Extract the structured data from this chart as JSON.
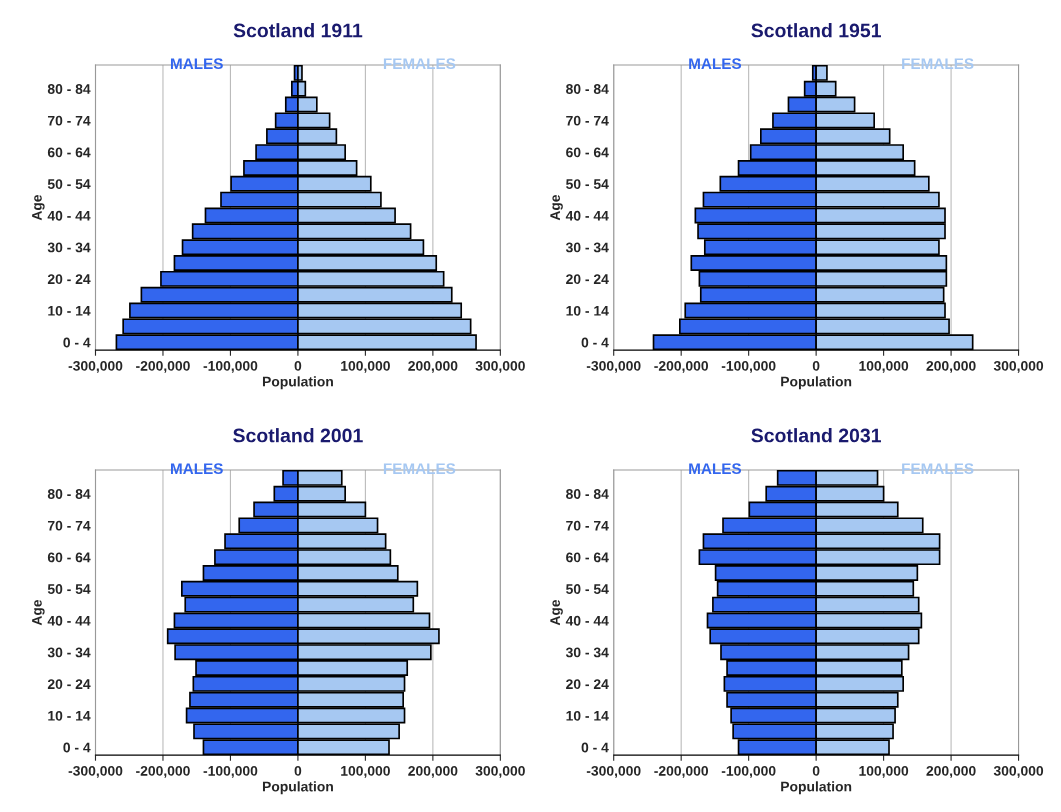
{
  "chart_data": [
    {
      "type": "bar",
      "title": "Scotland 1911",
      "xlabel": "Population",
      "ylabel": "Age",
      "orientation": "horizontal",
      "stacked": true,
      "grid": "x",
      "legend": false,
      "categories": [
        null,
        "80 - 84",
        null,
        "70 - 74",
        null,
        "60 - 64",
        null,
        "50 - 54",
        null,
        "40 - 44",
        null,
        "30 - 34",
        null,
        "20 - 24",
        null,
        "10 - 14",
        null,
        "0 - 4"
      ],
      "series": [
        {
          "name": "MALES",
          "color": "#3366ee",
          "values": [
            -5000,
            -9000,
            -18000,
            -33000,
            -46000,
            -62000,
            -80000,
            -99000,
            -114000,
            -137000,
            -156000,
            -171000,
            -183000,
            -203000,
            -232000,
            -249000,
            -259000,
            -269000
          ]
        },
        {
          "name": "FEMALES",
          "color": "#a6c8f2",
          "values": [
            6000,
            11000,
            28000,
            47000,
            57000,
            70000,
            87000,
            108000,
            123000,
            144000,
            167000,
            186000,
            205000,
            216000,
            228000,
            242000,
            256000,
            264000
          ]
        }
      ],
      "xlim": [
        -300000,
        300000
      ],
      "xticks": [
        {
          "value": -300000,
          "label": "-300,000"
        },
        {
          "value": -200000,
          "label": "-200,000"
        },
        {
          "value": -100000,
          "label": "-100,000"
        },
        0,
        {
          "value": 100000,
          "label": "100,000"
        },
        {
          "value": 200000,
          "label": "200,000"
        },
        {
          "value": 300000,
          "label": "300,000"
        }
      ]
    },
    {
      "type": "bar",
      "title": "Scotland 1951",
      "xlabel": "Population",
      "ylabel": "Age",
      "orientation": "horizontal",
      "stacked": true,
      "grid": "x",
      "legend": false,
      "categories": [
        null,
        "80 - 84",
        null,
        "70 - 74",
        null,
        "60 - 64",
        null,
        "50 - 54",
        null,
        "40 - 44",
        null,
        "30 - 34",
        null,
        "20 - 24",
        null,
        "10 - 14",
        null,
        "0 - 4"
      ],
      "series": [
        {
          "name": "MALES",
          "color": "#3366ee",
          "values": [
            -5000,
            -17000,
            -41000,
            -64000,
            -82000,
            -97000,
            -115000,
            -142000,
            -167000,
            -179000,
            -175000,
            -165000,
            -185000,
            -173000,
            -171000,
            -194000,
            -202000,
            -241000
          ]
        },
        {
          "name": "FEMALES",
          "color": "#a6c8f2",
          "values": [
            16000,
            29000,
            57000,
            86000,
            109000,
            129000,
            146000,
            167000,
            182000,
            191000,
            191000,
            182000,
            193000,
            193000,
            189000,
            191000,
            197000,
            232000
          ]
        }
      ],
      "xlim": [
        -300000,
        300000
      ],
      "xticks": [
        {
          "value": -300000,
          "label": "-300,000"
        },
        {
          "value": -200000,
          "label": "-200,000"
        },
        {
          "value": -100000,
          "label": "-100,000"
        },
        0,
        {
          "value": 100000,
          "label": "100,000"
        },
        {
          "value": 200000,
          "label": "200,000"
        },
        {
          "value": 300000,
          "label": "300,000"
        }
      ]
    },
    {
      "type": "bar",
      "title": "Scotland 2001",
      "xlabel": "Population",
      "ylabel": "Age",
      "orientation": "horizontal",
      "stacked": true,
      "grid": "x",
      "legend": false,
      "categories": [
        null,
        "80 - 84",
        null,
        "70 - 74",
        null,
        "60 - 64",
        null,
        "50 - 54",
        null,
        "40 - 44",
        null,
        "30 - 34",
        null,
        "20 - 24",
        null,
        "10 - 14",
        null,
        "0 - 4"
      ],
      "series": [
        {
          "name": "MALES",
          "color": "#3366ee",
          "values": [
            -22000,
            -35000,
            -65000,
            -87000,
            -108000,
            -123000,
            -140000,
            -172000,
            -167000,
            -183000,
            -193000,
            -182000,
            -151000,
            -155000,
            -160000,
            -165000,
            -154000,
            -140000
          ]
        },
        {
          "name": "FEMALES",
          "color": "#a6c8f2",
          "values": [
            65000,
            70000,
            100000,
            118000,
            130000,
            137000,
            148000,
            177000,
            171000,
            195000,
            209000,
            197000,
            162000,
            158000,
            156000,
            158000,
            150000,
            135000
          ]
        }
      ],
      "xlim": [
        -300000,
        300000
      ],
      "xticks": [
        {
          "value": -300000,
          "label": "-300,000"
        },
        {
          "value": -200000,
          "label": "-200,000"
        },
        {
          "value": -100000,
          "label": "-100,000"
        },
        0,
        {
          "value": 100000,
          "label": "100,000"
        },
        {
          "value": 200000,
          "label": "200,000"
        },
        {
          "value": 300000,
          "label": "300,000"
        }
      ]
    },
    {
      "type": "bar",
      "title": "Scotland 2031",
      "xlabel": "Population",
      "ylabel": "Age",
      "orientation": "horizontal",
      "stacked": true,
      "grid": "x",
      "legend": false,
      "categories": [
        null,
        "80 - 84",
        null,
        "70 - 74",
        null,
        "60 - 64",
        null,
        "50 - 54",
        null,
        "40 - 44",
        null,
        "30 - 34",
        null,
        "20 - 24",
        null,
        "10 - 14",
        null,
        "0 - 4"
      ],
      "series": [
        {
          "name": "MALES",
          "color": "#3366ee",
          "values": [
            -57000,
            -74000,
            -99000,
            -138000,
            -167000,
            -173000,
            -149000,
            -146000,
            -153000,
            -161000,
            -157000,
            -141000,
            -132000,
            -136000,
            -132000,
            -126000,
            -123000,
            -115000
          ]
        },
        {
          "name": "FEMALES",
          "color": "#a6c8f2",
          "values": [
            91000,
            100000,
            121000,
            158000,
            183000,
            183000,
            150000,
            144000,
            152000,
            156000,
            152000,
            137000,
            127000,
            129000,
            121000,
            117000,
            114000,
            108000
          ]
        }
      ],
      "xlim": [
        -300000,
        300000
      ],
      "xticks": [
        {
          "value": -300000,
          "label": "-300,000"
        },
        {
          "value": -200000,
          "label": "-200,000"
        },
        {
          "value": -100000,
          "label": "-100,000"
        },
        0,
        {
          "value": 100000,
          "label": "100,000"
        },
        {
          "value": 200000,
          "label": "200,000"
        },
        {
          "value": 300000,
          "label": "300,000"
        }
      ]
    }
  ]
}
